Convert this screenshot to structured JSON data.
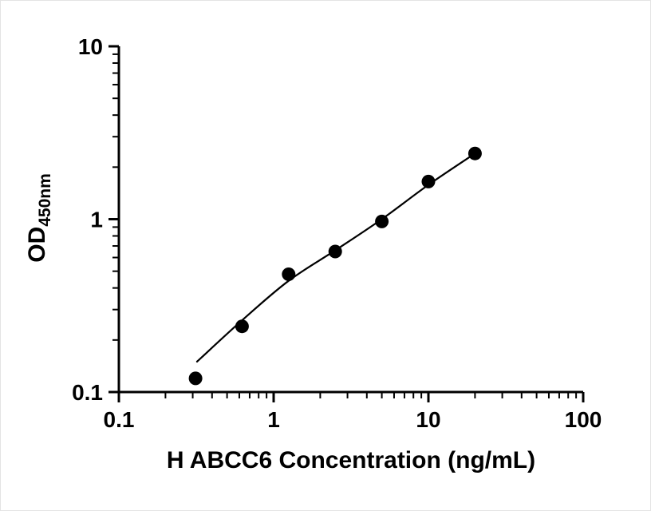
{
  "chart_data": {
    "type": "scatter",
    "title": "",
    "xlabel": "H ABCC6 Concentration (ng/mL)",
    "ylabel_main": "OD",
    "ylabel_sub": "450nm",
    "x_scale": "log",
    "y_scale": "log",
    "xlim": [
      0.1,
      100
    ],
    "ylim": [
      0.1,
      10
    ],
    "grid": false,
    "legend": "none",
    "x_tick_values": [
      0.1,
      1,
      10,
      100
    ],
    "x_tick_labels": [
      "0.1",
      "1",
      "10",
      "100"
    ],
    "y_tick_values": [
      0.1,
      1,
      10
    ],
    "y_tick_labels": [
      "0.1",
      "1",
      "10"
    ],
    "series": [
      {
        "name": "standard-curve-points",
        "marker": "filled-circle",
        "points": [
          [
            0.313,
            0.12
          ],
          [
            0.625,
            0.24
          ],
          [
            1.25,
            0.48
          ],
          [
            2.5,
            0.65
          ],
          [
            5,
            0.97
          ],
          [
            10,
            1.65
          ],
          [
            20,
            2.4
          ]
        ]
      }
    ],
    "fit_curve": [
      [
        0.32,
        0.15
      ],
      [
        0.625,
        0.26
      ],
      [
        1.25,
        0.44
      ],
      [
        2.5,
        0.66
      ],
      [
        5,
        1.0
      ],
      [
        10,
        1.58
      ],
      [
        20,
        2.4
      ]
    ],
    "marker_color": "#000000",
    "line_color": "#000000",
    "marker_radius": 8.5
  }
}
